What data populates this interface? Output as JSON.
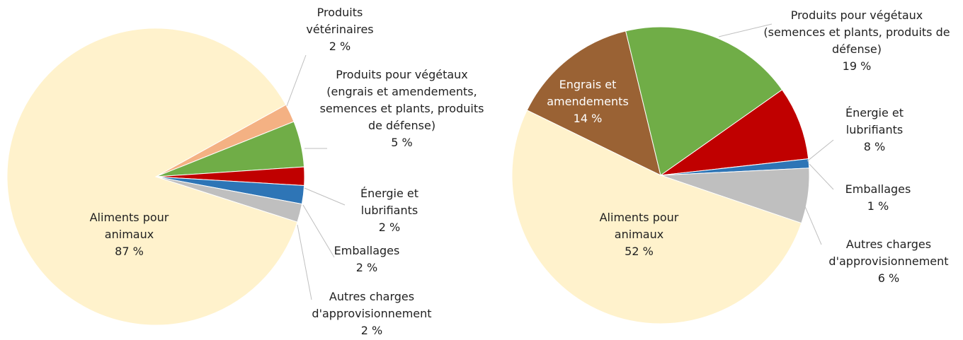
{
  "chart_data": [
    {
      "type": "pie",
      "categories": [
        "Produits vétérinaires",
        "Produits pour végétaux (engrais et amendements, semences et plants, produits de défense)",
        "Énergie et lubrifiants",
        "Emballages",
        "Autres charges d'approvisionnement",
        "Aliments pour animaux"
      ],
      "values": [
        2,
        5,
        2,
        2,
        2,
        87
      ],
      "value_labels": [
        "2 %",
        "5 %",
        "2 %",
        "2 %",
        "2 %",
        "87 %"
      ],
      "colors": [
        "#f4b183",
        "#70ad47",
        "#c00000",
        "#2e75b6",
        "#bfbfbf",
        "#fff2cc"
      ]
    },
    {
      "type": "pie",
      "categories": [
        "Engrais et amendements",
        "Produits pour végétaux (semences et plants, produits de défense)",
        "Énergie et lubrifiants",
        "Emballages",
        "Autres charges d'approvisionnement",
        "Aliments pour animaux"
      ],
      "values": [
        14,
        19,
        8,
        1,
        6,
        52
      ],
      "value_labels": [
        "14 %",
        "19 %",
        "8 %",
        "1 %",
        "6 %",
        "52 %"
      ],
      "colors": [
        "#9a6234",
        "#70ad47",
        "#c00000",
        "#2e75b6",
        "#bfbfbf",
        "#fff2cc"
      ]
    }
  ]
}
